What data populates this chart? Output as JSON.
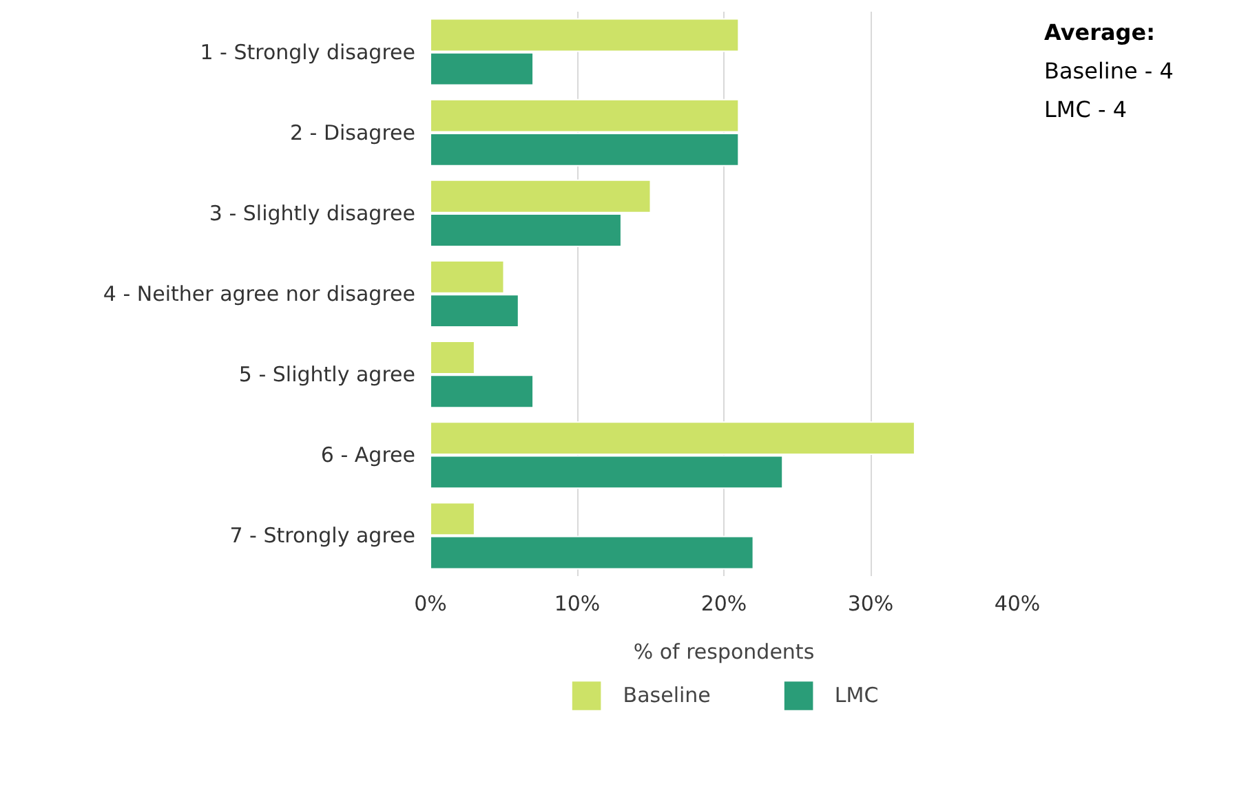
{
  "chart_data": {
    "type": "bar",
    "orientation": "horizontal",
    "categories": [
      "1 - Strongly disagree",
      "2 - Disagree",
      "3 - Slightly disagree",
      "4 - Neither agree nor disagree",
      "5 - Slightly agree",
      "6 - Agree",
      "7 - Strongly agree"
    ],
    "series": [
      {
        "name": "Baseline",
        "color": "#cde267",
        "values": [
          21,
          21,
          15,
          5,
          3,
          33,
          3
        ]
      },
      {
        "name": "LMC",
        "color": "#2a9d78",
        "values": [
          7,
          21,
          13,
          6,
          7,
          24,
          22
        ]
      }
    ],
    "xlabel": "% of respondents",
    "xlim": [
      0,
      40
    ],
    "xticks": [
      {
        "value": 0,
        "label": "0%"
      },
      {
        "value": 10,
        "label": "10%"
      },
      {
        "value": 20,
        "label": "20%"
      },
      {
        "value": 30,
        "label": "30%"
      },
      {
        "value": 40,
        "label": "40%"
      }
    ],
    "grid": "x",
    "legend": "bottom",
    "annotations": [
      "Average:",
      "Baseline - 4",
      "LMC - 4"
    ]
  }
}
